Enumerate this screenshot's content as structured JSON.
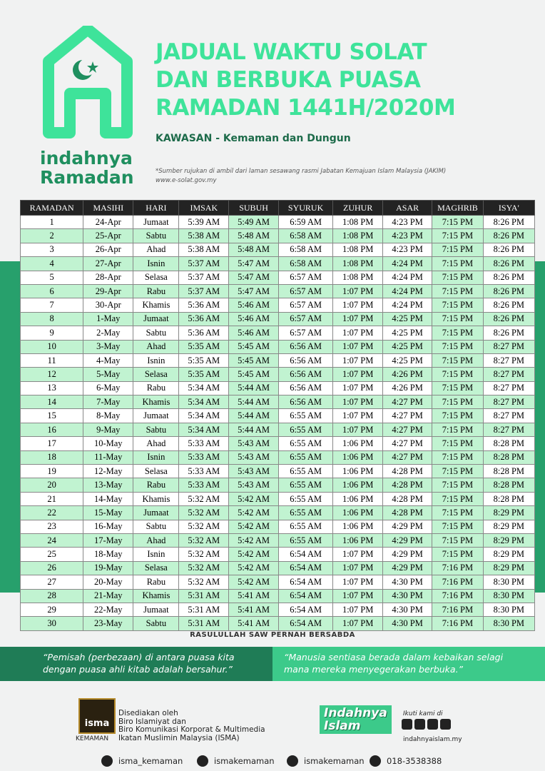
{
  "header": {
    "title_lines": [
      "JADUAL WAKTU SOLAT",
      "DAN BERBUKA PUASA",
      "RAMADAN 1441H/2020M"
    ],
    "region": "KAWASAN - Kemaman dan Dungun",
    "note_lines": [
      "*Sumber rujukan di ambil dari laman sesawang rasmi Jabatan Kemajuan Islam Malaysia (JAKIM)",
      "www.e-solat.gov.my"
    ],
    "logo_lines": [
      "indahnya",
      "Ramadan"
    ]
  },
  "table": {
    "columns": [
      "RAMADAN",
      "MASIHI",
      "HARI",
      "IMSAK",
      "SUBUH",
      "SYURUK",
      "ZUHUR",
      "ASAR",
      "MAGHRIB",
      "ISYA'"
    ],
    "rows": [
      [
        "1",
        "24-Apr",
        "Jumaat",
        "5:39 AM",
        "5:49 AM",
        "6:59 AM",
        "1:08 PM",
        "4:23 PM",
        "7:15 PM",
        "8:26 PM"
      ],
      [
        "2",
        "25-Apr",
        "Sabtu",
        "5:38 AM",
        "5:48 AM",
        "6:58 AM",
        "1:08 PM",
        "4:23 PM",
        "7:15 PM",
        "8:26 PM"
      ],
      [
        "3",
        "26-Apr",
        "Ahad",
        "5:38 AM",
        "5:48 AM",
        "6:58 AM",
        "1:08 PM",
        "4:23 PM",
        "7:15 PM",
        "8:26 PM"
      ],
      [
        "4",
        "27-Apr",
        "Isnin",
        "5:37 AM",
        "5:47 AM",
        "6:58 AM",
        "1:08 PM",
        "4:24 PM",
        "7:15 PM",
        "8:26 PM"
      ],
      [
        "5",
        "28-Apr",
        "Selasa",
        "5:37 AM",
        "5:47 AM",
        "6:57 AM",
        "1:08 PM",
        "4:24 PM",
        "7:15 PM",
        "8:26 PM"
      ],
      [
        "6",
        "29-Apr",
        "Rabu",
        "5:37 AM",
        "5:47 AM",
        "6:57 AM",
        "1:07 PM",
        "4:24 PM",
        "7:15 PM",
        "8:26 PM"
      ],
      [
        "7",
        "30-Apr",
        "Khamis",
        "5:36 AM",
        "5:46 AM",
        "6:57 AM",
        "1:07 PM",
        "4:24 PM",
        "7:15 PM",
        "8:26 PM"
      ],
      [
        "8",
        "1-May",
        "Jumaat",
        "5:36 AM",
        "5:46 AM",
        "6:57 AM",
        "1:07 PM",
        "4:25 PM",
        "7:15 PM",
        "8:26 PM"
      ],
      [
        "9",
        "2-May",
        "Sabtu",
        "5:36 AM",
        "5:46 AM",
        "6:57 AM",
        "1:07 PM",
        "4:25 PM",
        "7:15 PM",
        "8:26 PM"
      ],
      [
        "10",
        "3-May",
        "Ahad",
        "5:35 AM",
        "5:45 AM",
        "6:56 AM",
        "1:07 PM",
        "4:25 PM",
        "7:15 PM",
        "8:27 PM"
      ],
      [
        "11",
        "4-May",
        "Isnin",
        "5:35 AM",
        "5:45 AM",
        "6:56 AM",
        "1:07 PM",
        "4:25 PM",
        "7:15 PM",
        "8:27 PM"
      ],
      [
        "12",
        "5-May",
        "Selasa",
        "5:35 AM",
        "5:45 AM",
        "6:56 AM",
        "1:07 PM",
        "4:26 PM",
        "7:15 PM",
        "8:27 PM"
      ],
      [
        "13",
        "6-May",
        "Rabu",
        "5:34 AM",
        "5:44 AM",
        "6:56 AM",
        "1:07 PM",
        "4:26 PM",
        "7:15 PM",
        "8:27 PM"
      ],
      [
        "14",
        "7-May",
        "Khamis",
        "5:34 AM",
        "5:44 AM",
        "6:56 AM",
        "1:07 PM",
        "4:27 PM",
        "7:15 PM",
        "8:27 PM"
      ],
      [
        "15",
        "8-May",
        "Jumaat",
        "5:34 AM",
        "5:44 AM",
        "6:55 AM",
        "1:07 PM",
        "4:27 PM",
        "7:15 PM",
        "8:27 PM"
      ],
      [
        "16",
        "9-May",
        "Sabtu",
        "5:34 AM",
        "5:44 AM",
        "6:55 AM",
        "1:07 PM",
        "4:27 PM",
        "7:15 PM",
        "8:27 PM"
      ],
      [
        "17",
        "10-May",
        "Ahad",
        "5:33 AM",
        "5:43 AM",
        "6:55 AM",
        "1:06 PM",
        "4:27 PM",
        "7:15 PM",
        "8:28 PM"
      ],
      [
        "18",
        "11-May",
        "Isnin",
        "5:33 AM",
        "5:43 AM",
        "6:55 AM",
        "1:06 PM",
        "4:27 PM",
        "7:15 PM",
        "8:28 PM"
      ],
      [
        "19",
        "12-May",
        "Selasa",
        "5:33 AM",
        "5:43 AM",
        "6:55 AM",
        "1:06 PM",
        "4:28 PM",
        "7:15 PM",
        "8:28 PM"
      ],
      [
        "20",
        "13-May",
        "Rabu",
        "5:33 AM",
        "5:43 AM",
        "6:55 AM",
        "1:06 PM",
        "4:28 PM",
        "7:15 PM",
        "8:28 PM"
      ],
      [
        "21",
        "14-May",
        "Khamis",
        "5:32 AM",
        "5:42 AM",
        "6:55 AM",
        "1:06 PM",
        "4:28 PM",
        "7:15 PM",
        "8:28 PM"
      ],
      [
        "22",
        "15-May",
        "Jumaat",
        "5:32 AM",
        "5:42 AM",
        "6:55 AM",
        "1:06 PM",
        "4:28 PM",
        "7:15 PM",
        "8:29 PM"
      ],
      [
        "23",
        "16-May",
        "Sabtu",
        "5:32 AM",
        "5:42 AM",
        "6:55 AM",
        "1:06 PM",
        "4:29 PM",
        "7:15 PM",
        "8:29 PM"
      ],
      [
        "24",
        "17-May",
        "Ahad",
        "5:32 AM",
        "5:42 AM",
        "6:55 AM",
        "1:06 PM",
        "4:29 PM",
        "7:15 PM",
        "8:29 PM"
      ],
      [
        "25",
        "18-May",
        "Isnin",
        "5:32 AM",
        "5:42 AM",
        "6:54 AM",
        "1:07 PM",
        "4:29 PM",
        "7:15 PM",
        "8:29 PM"
      ],
      [
        "26",
        "19-May",
        "Selasa",
        "5:32 AM",
        "5:42 AM",
        "6:54 AM",
        "1:07 PM",
        "4:29 PM",
        "7:16 PM",
        "8:29 PM"
      ],
      [
        "27",
        "20-May",
        "Rabu",
        "5:32 AM",
        "5:42 AM",
        "6:54 AM",
        "1:07 PM",
        "4:30 PM",
        "7:16 PM",
        "8:30 PM"
      ],
      [
        "28",
        "21-May",
        "Khamis",
        "5:31 AM",
        "5:41 AM",
        "6:54 AM",
        "1:07 PM",
        "4:30 PM",
        "7:16 PM",
        "8:30 PM"
      ],
      [
        "29",
        "22-May",
        "Jumaat",
        "5:31 AM",
        "5:41 AM",
        "6:54 AM",
        "1:07 PM",
        "4:30 PM",
        "7:16 PM",
        "8:30 PM"
      ],
      [
        "30",
        "23-May",
        "Sabtu",
        "5:31 AM",
        "5:41 AM",
        "6:54 AM",
        "1:07 PM",
        "4:30 PM",
        "7:16 PM",
        "8:30 PM"
      ]
    ]
  },
  "hadith": {
    "heading": "RASULULLAH SAW PERNAH BERSABDA",
    "quote_left": "“Pemisah (perbezaan) di antara puasa kita dengan puasa ahli kitab adalah bersahur.”",
    "quote_right": "“Manusia sentiasa berada dalam kebaikan selagi mana mereka menyegerakan berbuka.”"
  },
  "footer": {
    "isma_logo": "isma",
    "isma_branch": "KEMAMAN",
    "prepared_lines": [
      "Disediakan oleh",
      "Biro Islamiyat dan",
      "Biro Komunikasi Korporat & Multimedia",
      "Ikatan Muslimin Malaysia (ISMA)"
    ],
    "brand_lines": [
      "Indahnya",
      "Islam"
    ],
    "follow": "Ikuti kami di",
    "website": "indahnyaislam.my",
    "socials": [
      "isma_kemaman",
      "ismakemaman",
      "ismakemaman",
      "018-3538388"
    ]
  }
}
